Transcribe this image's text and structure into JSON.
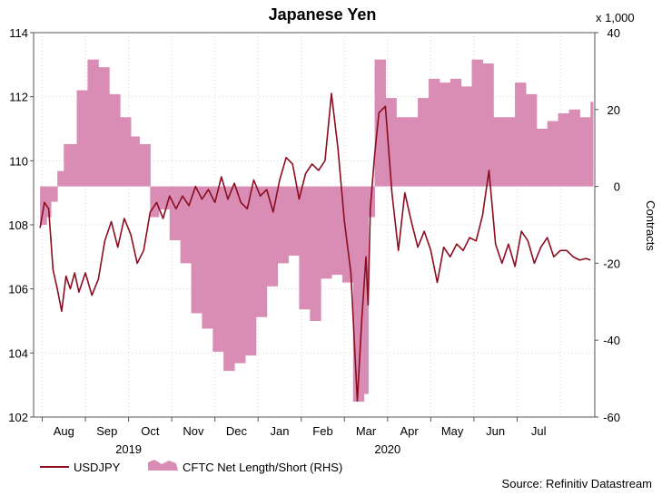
{
  "chart_data": {
    "type": "line",
    "title": "Japanese Yen",
    "source": "Source: Refinitiv Datastream",
    "left_axis": {
      "ticks": [
        "102",
        "104",
        "106",
        "108",
        "110",
        "112",
        "114"
      ],
      "ylim": [
        102,
        114
      ]
    },
    "right_axis": {
      "label": "Contracts",
      "multiplier": "x 1,000",
      "ticks": [
        "-60",
        "-40",
        "-20",
        "0",
        "20",
        "40"
      ],
      "ylim": [
        -60,
        40
      ]
    },
    "x_axis": {
      "months": [
        "Aug",
        "Sep",
        "Oct",
        "Nov",
        "Dec",
        "Jan",
        "Feb",
        "Mar",
        "Apr",
        "May",
        "Jun",
        "Jul"
      ],
      "years": [
        {
          "label": "2019",
          "month_index": 2
        },
        {
          "label": "2020",
          "month_index": 8
        }
      ],
      "xlim": [
        0,
        12.3
      ]
    },
    "legend": {
      "usdjpy": "USDJPY",
      "cftc": "CFTC Net Length/Short (RHS)"
    },
    "colors": {
      "usdjpy": "#8b0d1f",
      "cftc": "#d98cb4"
    },
    "series": [
      {
        "name": "CFTC Net Length/Short (RHS)",
        "type": "area",
        "x": [
          -0.55,
          -0.4,
          -0.3,
          -0.15,
          0,
          0.3,
          0.55,
          0.8,
          1.05,
          1.3,
          1.55,
          1.75,
          2.0,
          2.2,
          2.45,
          2.7,
          2.95,
          3.2,
          3.45,
          3.7,
          3.95,
          4.2,
          4.45,
          4.7,
          4.95,
          5.2,
          5.45,
          5.7,
          5.95,
          6.2,
          6.45,
          6.7,
          6.95,
          7.05,
          7.2,
          7.45,
          7.7,
          7.95,
          8.2,
          8.45,
          8.7,
          8.95,
          9.2,
          9.45,
          9.7,
          9.95,
          10.2,
          10.45,
          10.7,
          10.95,
          11.2,
          11.45,
          11.7,
          11.95,
          12.2
        ],
        "values": [
          -10,
          -8,
          -4,
          4,
          11,
          25,
          33,
          31,
          24,
          18,
          13,
          11,
          -8,
          -6,
          -14,
          -20,
          -33,
          -37,
          -43,
          -48,
          -46,
          -44,
          -34,
          -26,
          -20,
          -18,
          -32,
          -35,
          -24,
          -23,
          -25,
          -56,
          -54,
          -8,
          33,
          23,
          18,
          18,
          23,
          28,
          27,
          28,
          26,
          33,
          32,
          18,
          18,
          27,
          24,
          15,
          17,
          19,
          20,
          18,
          22
        ]
      },
      {
        "name": "USDJPY",
        "type": "line",
        "x": [
          -0.55,
          -0.45,
          -0.35,
          -0.25,
          -0.15,
          -0.05,
          0.05,
          0.15,
          0.25,
          0.35,
          0.5,
          0.65,
          0.8,
          0.95,
          1.1,
          1.25,
          1.4,
          1.55,
          1.7,
          1.85,
          2.0,
          2.15,
          2.3,
          2.45,
          2.6,
          2.75,
          2.9,
          3.05,
          3.2,
          3.35,
          3.5,
          3.65,
          3.8,
          3.95,
          4.1,
          4.25,
          4.4,
          4.55,
          4.7,
          4.85,
          5.0,
          5.15,
          5.3,
          5.45,
          5.6,
          5.75,
          5.9,
          6.05,
          6.2,
          6.35,
          6.5,
          6.65,
          6.8,
          6.9,
          7.0,
          7.05,
          7.1,
          7.2,
          7.3,
          7.45,
          7.6,
          7.75,
          7.9,
          8.05,
          8.2,
          8.35,
          8.5,
          8.65,
          8.8,
          8.95,
          9.1,
          9.25,
          9.4,
          9.55,
          9.7,
          9.85,
          10.0,
          10.15,
          10.3,
          10.45,
          10.6,
          10.75,
          10.9,
          11.05,
          11.2,
          11.35,
          11.5,
          11.65,
          11.8,
          11.95,
          12.1,
          12.2
        ],
        "values": [
          107.9,
          108.7,
          108.5,
          106.6,
          106.0,
          105.3,
          106.4,
          106.0,
          106.5,
          105.9,
          106.5,
          105.8,
          106.3,
          107.5,
          108.1,
          107.3,
          108.2,
          107.7,
          106.8,
          107.2,
          108.4,
          108.7,
          108.2,
          108.9,
          108.5,
          108.9,
          108.6,
          109.2,
          108.8,
          109.1,
          108.7,
          109.5,
          108.8,
          109.3,
          108.7,
          108.5,
          109.4,
          108.9,
          109.1,
          108.4,
          109.4,
          110.1,
          109.9,
          108.8,
          109.6,
          109.9,
          109.7,
          110.0,
          112.1,
          110.4,
          108.1,
          106.5,
          102.5,
          105.0,
          107.0,
          105.5,
          108.5,
          110.2,
          111.5,
          111.7,
          109.0,
          107.2,
          109.0,
          108.1,
          107.3,
          107.8,
          107.2,
          106.2,
          107.3,
          107.0,
          107.4,
          107.2,
          107.6,
          107.5,
          108.3,
          109.7,
          107.4,
          106.8,
          107.4,
          106.7,
          107.8,
          107.5,
          106.8,
          107.3,
          107.6,
          107.0,
          107.2,
          107.2,
          107.0,
          106.9,
          106.95,
          106.9
        ]
      }
    ]
  }
}
